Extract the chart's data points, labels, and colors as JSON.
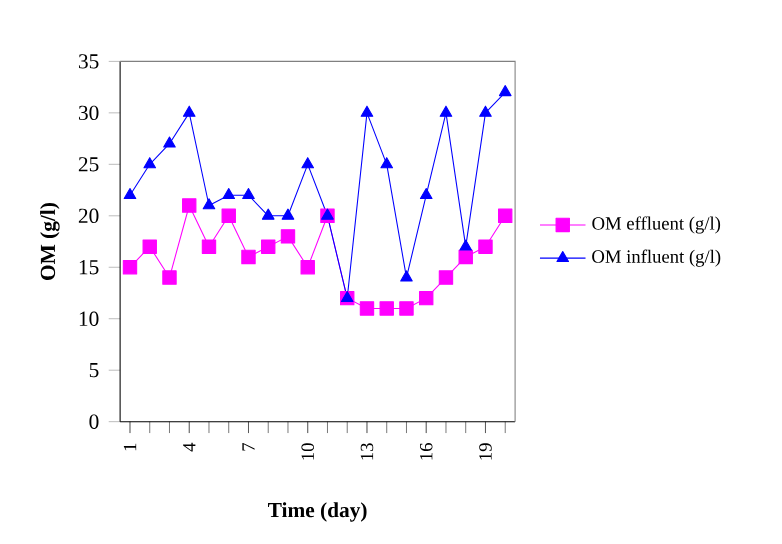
{
  "chart_data": {
    "type": "line",
    "xlabel": "Time (day)",
    "ylabel": "OM (g/l)",
    "categories": [
      "1",
      null,
      null,
      "4",
      null,
      null,
      "7",
      null,
      null,
      "10",
      null,
      null,
      "13",
      null,
      null,
      "16",
      null,
      null,
      "19",
      null
    ],
    "series": [
      {
        "name": "OM effluent (g/l)",
        "color": "#ff00ff",
        "marker": "square",
        "values": [
          15,
          17,
          14,
          21,
          17,
          20,
          16,
          17,
          18,
          15,
          20,
          12,
          11,
          11,
          11,
          12,
          14,
          16,
          17,
          20
        ]
      },
      {
        "name": "OM influent (g/l)",
        "color": "#0000ff",
        "marker": "triangle",
        "values": [
          22,
          25,
          27,
          30,
          21,
          22,
          22,
          20,
          20,
          25,
          20,
          12,
          30,
          25,
          14,
          22,
          30,
          17,
          30,
          32
        ]
      }
    ],
    "ylim": [
      0,
      35
    ],
    "yticks": [
      0,
      5,
      10,
      15,
      20,
      25,
      30,
      35
    ],
    "grid": false,
    "legend": "right"
  }
}
